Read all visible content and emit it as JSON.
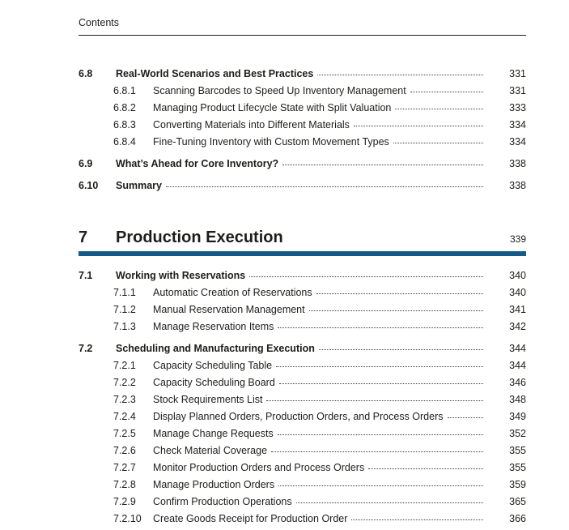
{
  "page": {
    "header_label": "Contents"
  },
  "colors": {
    "accent_bar": "#155a87",
    "text": "#1d1d1b",
    "dot_leader": "#3f3f3f"
  },
  "toc": {
    "groups": [
      {
        "entries": [
          {
            "number": "6.8",
            "title": "Real-World Scenarios and Best Practices",
            "page": "331",
            "level": "section"
          },
          {
            "number": "6.8.1",
            "title": "Scanning Barcodes to Speed Up Inventory Management",
            "page": "331",
            "level": "subsection"
          },
          {
            "number": "6.8.2",
            "title": "Managing Product Lifecycle State with Split Valuation",
            "page": "333",
            "level": "subsection"
          },
          {
            "number": "6.8.3",
            "title": "Converting Materials into Different Materials",
            "page": "334",
            "level": "subsection"
          },
          {
            "number": "6.8.4",
            "title": "Fine-Tuning Inventory with Custom Movement Types",
            "page": "334",
            "level": "subsection"
          },
          {
            "number": "6.9",
            "title": "What’s Ahead for Core Inventory?",
            "page": "338",
            "level": "section"
          },
          {
            "number": "6.10",
            "title": "Summary",
            "page": "338",
            "level": "section"
          }
        ]
      },
      {
        "chapter": {
          "number": "7",
          "title": "Production Execution",
          "page": "339"
        },
        "entries": [
          {
            "number": "7.1",
            "title": "Working with Reservations",
            "page": "340",
            "level": "section"
          },
          {
            "number": "7.1.1",
            "title": "Automatic Creation of Reservations",
            "page": "340",
            "level": "subsection"
          },
          {
            "number": "7.1.2",
            "title": "Manual Reservation Management",
            "page": "341",
            "level": "subsection"
          },
          {
            "number": "7.1.3",
            "title": "Manage Reservation Items",
            "page": "342",
            "level": "subsection"
          },
          {
            "number": "7.2",
            "title": "Scheduling and Manufacturing Execution",
            "page": "344",
            "level": "section"
          },
          {
            "number": "7.2.1",
            "title": "Capacity Scheduling Table",
            "page": "344",
            "level": "subsection"
          },
          {
            "number": "7.2.2",
            "title": "Capacity Scheduling Board",
            "page": "346",
            "level": "subsection"
          },
          {
            "number": "7.2.3",
            "title": "Stock Requirements List",
            "page": "348",
            "level": "subsection"
          },
          {
            "number": "7.2.4",
            "title": "Display Planned Orders, Production Orders, and Process Orders",
            "page": "349",
            "level": "subsection"
          },
          {
            "number": "7.2.5",
            "title": "Manage Change Requests",
            "page": "352",
            "level": "subsection"
          },
          {
            "number": "7.2.6",
            "title": "Check Material Coverage",
            "page": "355",
            "level": "subsection"
          },
          {
            "number": "7.2.7",
            "title": "Monitor Production Orders and Process Orders",
            "page": "355",
            "level": "subsection"
          },
          {
            "number": "7.2.8",
            "title": "Manage Production Orders",
            "page": "359",
            "level": "subsection"
          },
          {
            "number": "7.2.9",
            "title": "Confirm Production Operations",
            "page": "365",
            "level": "subsection"
          },
          {
            "number": "7.2.10",
            "title": "Create Goods Receipt for Production Order",
            "page": "366",
            "level": "subsection"
          }
        ]
      }
    ]
  }
}
